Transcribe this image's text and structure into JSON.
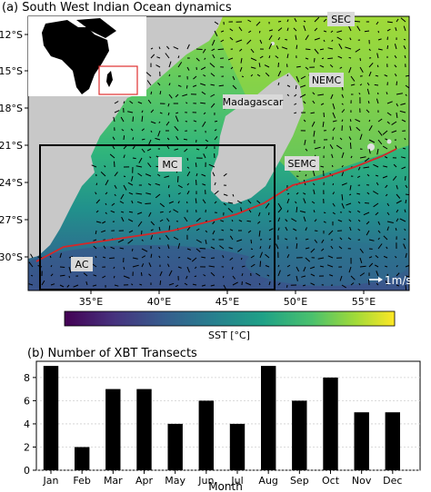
{
  "panel_a": {
    "title": "(a) South West Indian Ocean dynamics",
    "lat_ticks": [
      "12°S",
      "15°S",
      "18°S",
      "21°S",
      "24°S",
      "27°S",
      "30°S"
    ],
    "lon_ticks": [
      "35°E",
      "40°E",
      "45°E",
      "50°E",
      "55°E"
    ],
    "labels": {
      "sec": "SEC",
      "nemc": "NEMC",
      "madagascar": "Madagascar",
      "mc": "MC",
      "semc": "SEMC",
      "ac": "AC"
    },
    "scale_arrow": "1m/s",
    "colorbar_label": "SST [°C]",
    "colors": {
      "land": "#c8c8c8",
      "track": "#d62728",
      "inset_box": "#e03030",
      "box": "#000000"
    }
  },
  "chart_data": {
    "type": "bar",
    "title": "(b) Number of XBT Transects",
    "xlabel": "Month",
    "ylabel": "",
    "categories": [
      "Jan",
      "Feb",
      "Mar",
      "Apr",
      "May",
      "Jun",
      "Jul",
      "Aug",
      "Sep",
      "Oct",
      "Nov",
      "Dec"
    ],
    "values": [
      9,
      2,
      7,
      7,
      4,
      6,
      4,
      9,
      6,
      8,
      5,
      5
    ],
    "ylim": [
      0,
      9.4
    ],
    "yticks": [
      "0",
      "2",
      "4",
      "6",
      "8"
    ],
    "grid": true,
    "bar_color": "#000000"
  }
}
